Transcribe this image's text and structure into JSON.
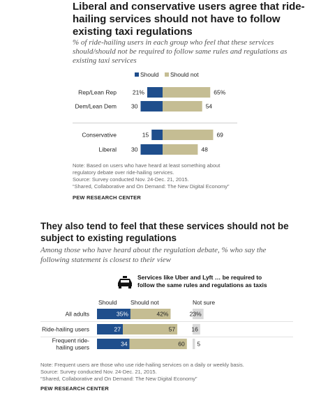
{
  "chart1": {
    "title": "Liberal and conservative users agree that ride-hailing services should not have to follow existing taxi regulations",
    "subtitle": "% of ride-hailing users in each group who feel that these services should/should not be required to follow same rules and regulations as existing taxi services",
    "note_lines": [
      "Note: Based on users who have heard at least something about",
      "regulatory debate over ride-hailing services.",
      "Source: Survey conducted Nov. 24-Dec. 21, 2015.",
      "“Shared, Collaborative and On Demand: The New Digital Economy”"
    ],
    "source": "PEW RESEARCH CENTER"
  },
  "chart2": {
    "title": "They also tend to feel that these services should not be subject to existing regulations",
    "subtitle": "Among those who have heard about the regulation debate, % who say the following statement is closest to their view",
    "statement_lines": [
      "Services like Uber and Lyft … be required to",
      "follow the same rules and regulations as taxis"
    ],
    "icon": "taxi-icon",
    "note_lines": [
      "Note: Frequent users are those who use ride-hailing services on a daily or weekly basis.",
      "Source: Survey conducted Nov. 24-Dec. 21, 2015.",
      "“Shared, Collaborative and On Demand: The New Digital Economy”"
    ],
    "source": "PEW RESEARCH CENTER"
  },
  "colors": {
    "should": "#1f4e8c",
    "should_not": "#c5bd93",
    "not_sure": "#d9d9d9"
  },
  "chart_data": [
    {
      "type": "bar",
      "title": "Liberal and conservative users agree that ride-hailing services should not have to follow existing taxi regulations",
      "legend": "top",
      "categories": [
        "Rep/Lean Rep",
        "Dem/Lean Dem",
        "Conservative",
        "Liberal"
      ],
      "series": [
        {
          "name": "Should",
          "values": [
            21,
            30,
            15,
            30
          ],
          "labels": [
            "21%",
            "30",
            "15",
            "30"
          ]
        },
        {
          "name": "Should not",
          "values": [
            65,
            54,
            69,
            48
          ],
          "labels": [
            "65%",
            "54",
            "69",
            "48"
          ]
        }
      ]
    },
    {
      "type": "bar",
      "title": "They also tend to feel that these services should not be subject to existing regulations",
      "categories": [
        [
          "All adults"
        ],
        [
          "Ride-hailing users"
        ],
        [
          "Frequent ride-",
          "hailing users"
        ]
      ],
      "series": [
        {
          "name": "Should",
          "values": [
            35,
            27,
            34
          ],
          "labels": [
            "35%",
            "27",
            "34"
          ]
        },
        {
          "name": "Should not",
          "values": [
            42,
            57,
            60
          ],
          "labels": [
            "42%",
            "57",
            "60"
          ]
        },
        {
          "name": "Not sure",
          "values": [
            23,
            16,
            5
          ],
          "labels": [
            "23%",
            "16",
            "5"
          ]
        }
      ]
    }
  ]
}
